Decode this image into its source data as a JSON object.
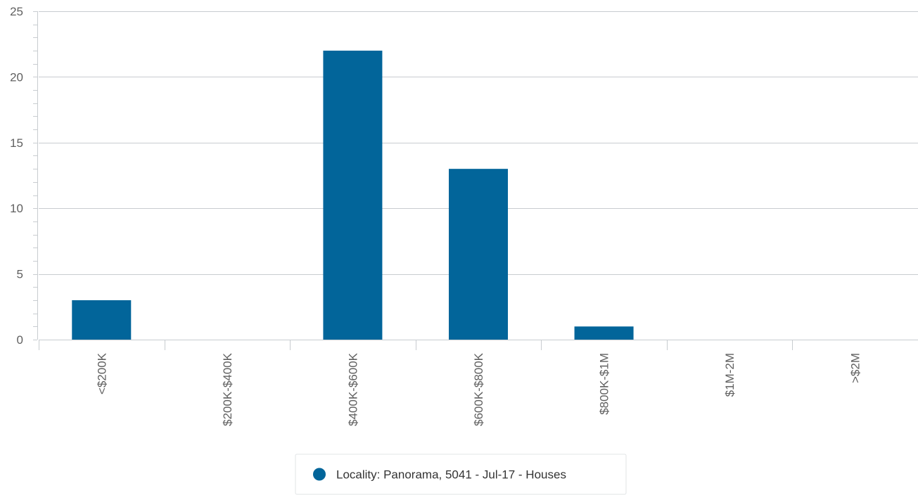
{
  "chart_data": {
    "type": "bar",
    "categories": [
      "<$200K",
      "$200K-$400K",
      "$400K-$600K",
      "$600K-$800K",
      "$800K-$1M",
      "$1M-2M",
      ">$2M"
    ],
    "series": [
      {
        "name": "Locality: Panorama, 5041 - Jul-17 - Houses",
        "values": [
          3,
          0,
          22,
          13,
          1,
          0,
          0
        ],
        "color": "#02659a"
      }
    ],
    "ylim": [
      0,
      25
    ],
    "yticks": [
      0,
      5,
      10,
      15,
      20,
      25
    ],
    "grid": true,
    "legend_position": "bottom-center"
  }
}
